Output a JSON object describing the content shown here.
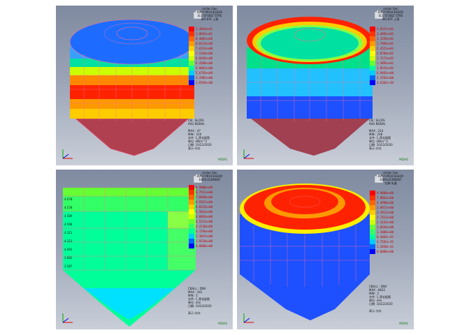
{
  "panels": [
    {
      "id": "p1",
      "header": [
        "midas Gen",
        "POST-PROCESSOR",
        "SLS STUBLT STRE"
      ],
      "legend_title": "SIG-EFF 上表",
      "legend_values": [
        "1.4054e+01",
        "1.0035e+01",
        "8.4001e+00",
        "8.0123e+00",
        "7.6231e+00",
        "7.2344e+00",
        "6.8456e+00",
        "6.4568e+00",
        "6.0681e+00",
        "5.6793e+00",
        "4.2905e+00",
        "2.8594e+00"
      ],
      "legend_colors": [
        "#ff0000",
        "#ff3300",
        "#ff6600",
        "#ff9900",
        "#ffcc00",
        "#ffff00",
        "#ccff00",
        "#66ff33",
        "#00ff99",
        "#00ccff",
        "#0066ff",
        "#0000ff"
      ],
      "info": [
        "CN : SLCRS",
        "AVG NODAL",
        "",
        "MAX : 47",
        "MIN : 316",
        "文件: 1_筒仓配筋",
        "单位: kN/m^2",
        "日期: 10/22/2020",
        "表示-方向"
      ]
    },
    {
      "id": "p2",
      "header": [
        "midas Gen",
        "POST-PROCESSOR",
        "SLS STUBLT STRE"
      ],
      "legend_title": "SIG-EFF 上表",
      "legend_values": [
        "3.8257e+01",
        "3.4092e+01",
        "3.1259e+01",
        "2.7993e+01",
        "2.4521e+01",
        "2.0784e+01",
        "1.7272e+01",
        "1.3895e+01",
        "1.0541e+01",
        "6.9465e+00",
        "3.4765e+00",
        "4.6262e-04"
      ],
      "legend_colors": [
        "#ff0000",
        "#ff3300",
        "#ff6600",
        "#ff9900",
        "#ffcc00",
        "#ffff00",
        "#ccff00",
        "#66ff33",
        "#00ff99",
        "#00ccff",
        "#0066ff",
        "#0000ff"
      ],
      "info": [
        "CN : SLCRS",
        "AVG NODAL",
        "",
        "MAX : 214",
        "MIN : 238",
        "文件: 1_筒仓配筋",
        "单位: kN/m^2",
        "日期: 10/22/2020",
        "表示-方向"
      ]
    },
    {
      "id": "p3",
      "header": [
        "midas Gen",
        "POST-PROCESSOR",
        "DISPLACEMENT"
      ],
      "legend_title": "",
      "legend_values": [
        "9.9000e+00",
        "8.7511e+00",
        "7.8940e+00",
        "6.9267e+00",
        "6.0125e+00",
        "5.5013e+00",
        "4.8893e+00",
        "4.5221e+00",
        "4.2130e+00",
        "3.1794e+00",
        "2.3847e+00",
        "1.9218e+00",
        "0.0000e+00"
      ],
      "legend_colors": [
        "#ff0000",
        "#ff3300",
        "#ff6600",
        "#ff9900",
        "#ffcc00",
        "#ffff00",
        "#ccff00",
        "#66ff33",
        "#33ff66",
        "#00ff99",
        "#00ccff",
        "#0066ff",
        "#0000ff"
      ],
      "info": [
        "CBALL : DNV",
        "MAX : 341",
        "MIN : 1",
        "文件: 1_筒仓配筋",
        "单位: mm",
        "日期: 10/24/2020",
        "",
        "表示-方向"
      ]
    },
    {
      "id": "p4",
      "header": [
        "midas Gen",
        "POST-PROCESSOR",
        "DISPLACEMENT"
      ],
      "legend_title": "位移-矢量",
      "legend_values": [
        "9.9800e+00",
        "7.8861e+00",
        "4.4990e+00",
        "3.8917e+00",
        "3.2911e+00",
        "2.7311e+00",
        "2.1435e+00",
        "1.6658e+00",
        "1.1886e+00",
        "8.4883e-01",
        "4.7581e-01",
        "1.2850e-01",
        "0.0000e+00"
      ],
      "legend_colors": [
        "#ff0000",
        "#ff3300",
        "#ff6600",
        "#ff9900",
        "#ffcc00",
        "#ffff00",
        "#ccff00",
        "#66ff33",
        "#33ff66",
        "#00ff99",
        "#00ccff",
        "#0066ff",
        "#0000ff"
      ],
      "info": [
        "CBALL : DNV",
        "MAX : 6832",
        "MIN : 2",
        "文件: 1_筒仓配筋",
        "单位: mm",
        "日期: 10/22/2020",
        "",
        "表示-方向"
      ]
    }
  ],
  "row_labels_p3": [
    "4.078",
    "4.578",
    "4.589",
    "4.598",
    "4.321",
    "4.223",
    "4.092",
    "3.892",
    "3.587"
  ],
  "brand": "MIDAS"
}
